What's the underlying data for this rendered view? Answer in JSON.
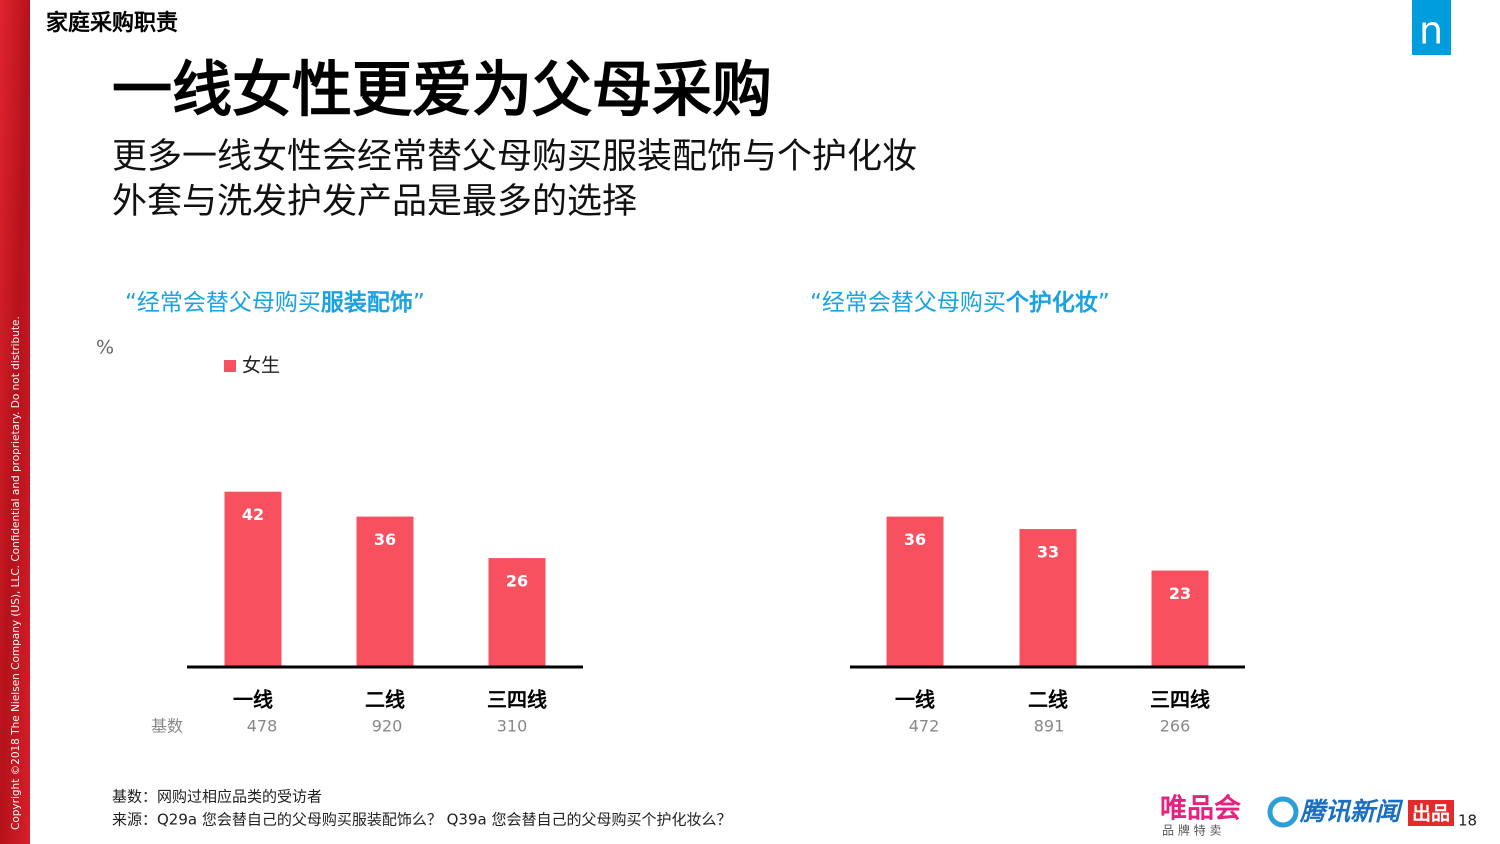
{
  "header": "家庭采购职责",
  "title": "一线女性更爱为父母采购",
  "subtitle": [
    "更多一线女性会经常替父母购买服装配饰与个护化妆",
    "外套与洗发护发产品是最多的选择"
  ],
  "chart_data": [
    {
      "type": "bar",
      "title": [
        "“经常会替父母购买",
        "服装配饰",
        "”"
      ],
      "unit": "%",
      "categories": [
        "一线",
        "二线",
        "三四线"
      ],
      "series": [
        {
          "name": "女生",
          "color": "#f7505f",
          "values": [
            42,
            36,
            26
          ]
        }
      ],
      "base_label": "基数",
      "bases": [
        478,
        920,
        310
      ]
    },
    {
      "type": "bar",
      "title": [
        "“经常会替父母购买",
        "个护化妆",
        "”"
      ],
      "categories": [
        "一线",
        "二线",
        "三四线"
      ],
      "series": [
        {
          "color": "#f7505f",
          "values": [
            36,
            33,
            23
          ]
        }
      ],
      "bases": [
        472,
        891,
        266
      ]
    }
  ],
  "footnotes": [
    "基数：网购过相应品类的受访者",
    "来源：Q29a 您会替自己的父母购买服装配饰么？  Q39a 您会替自己的父母购买个护化妆么？"
  ],
  "copyright": "Copyright ©2018 The Nielsen Company (US), LLC. Confidential and proprietary. Do not distribute.",
  "logo": "n",
  "brand": {
    "vip": "唯品会",
    "vip_tagline": "品 牌 特 卖",
    "tencent": "腾讯新闻",
    "tencent_tag": "出品"
  },
  "page_number": 18
}
